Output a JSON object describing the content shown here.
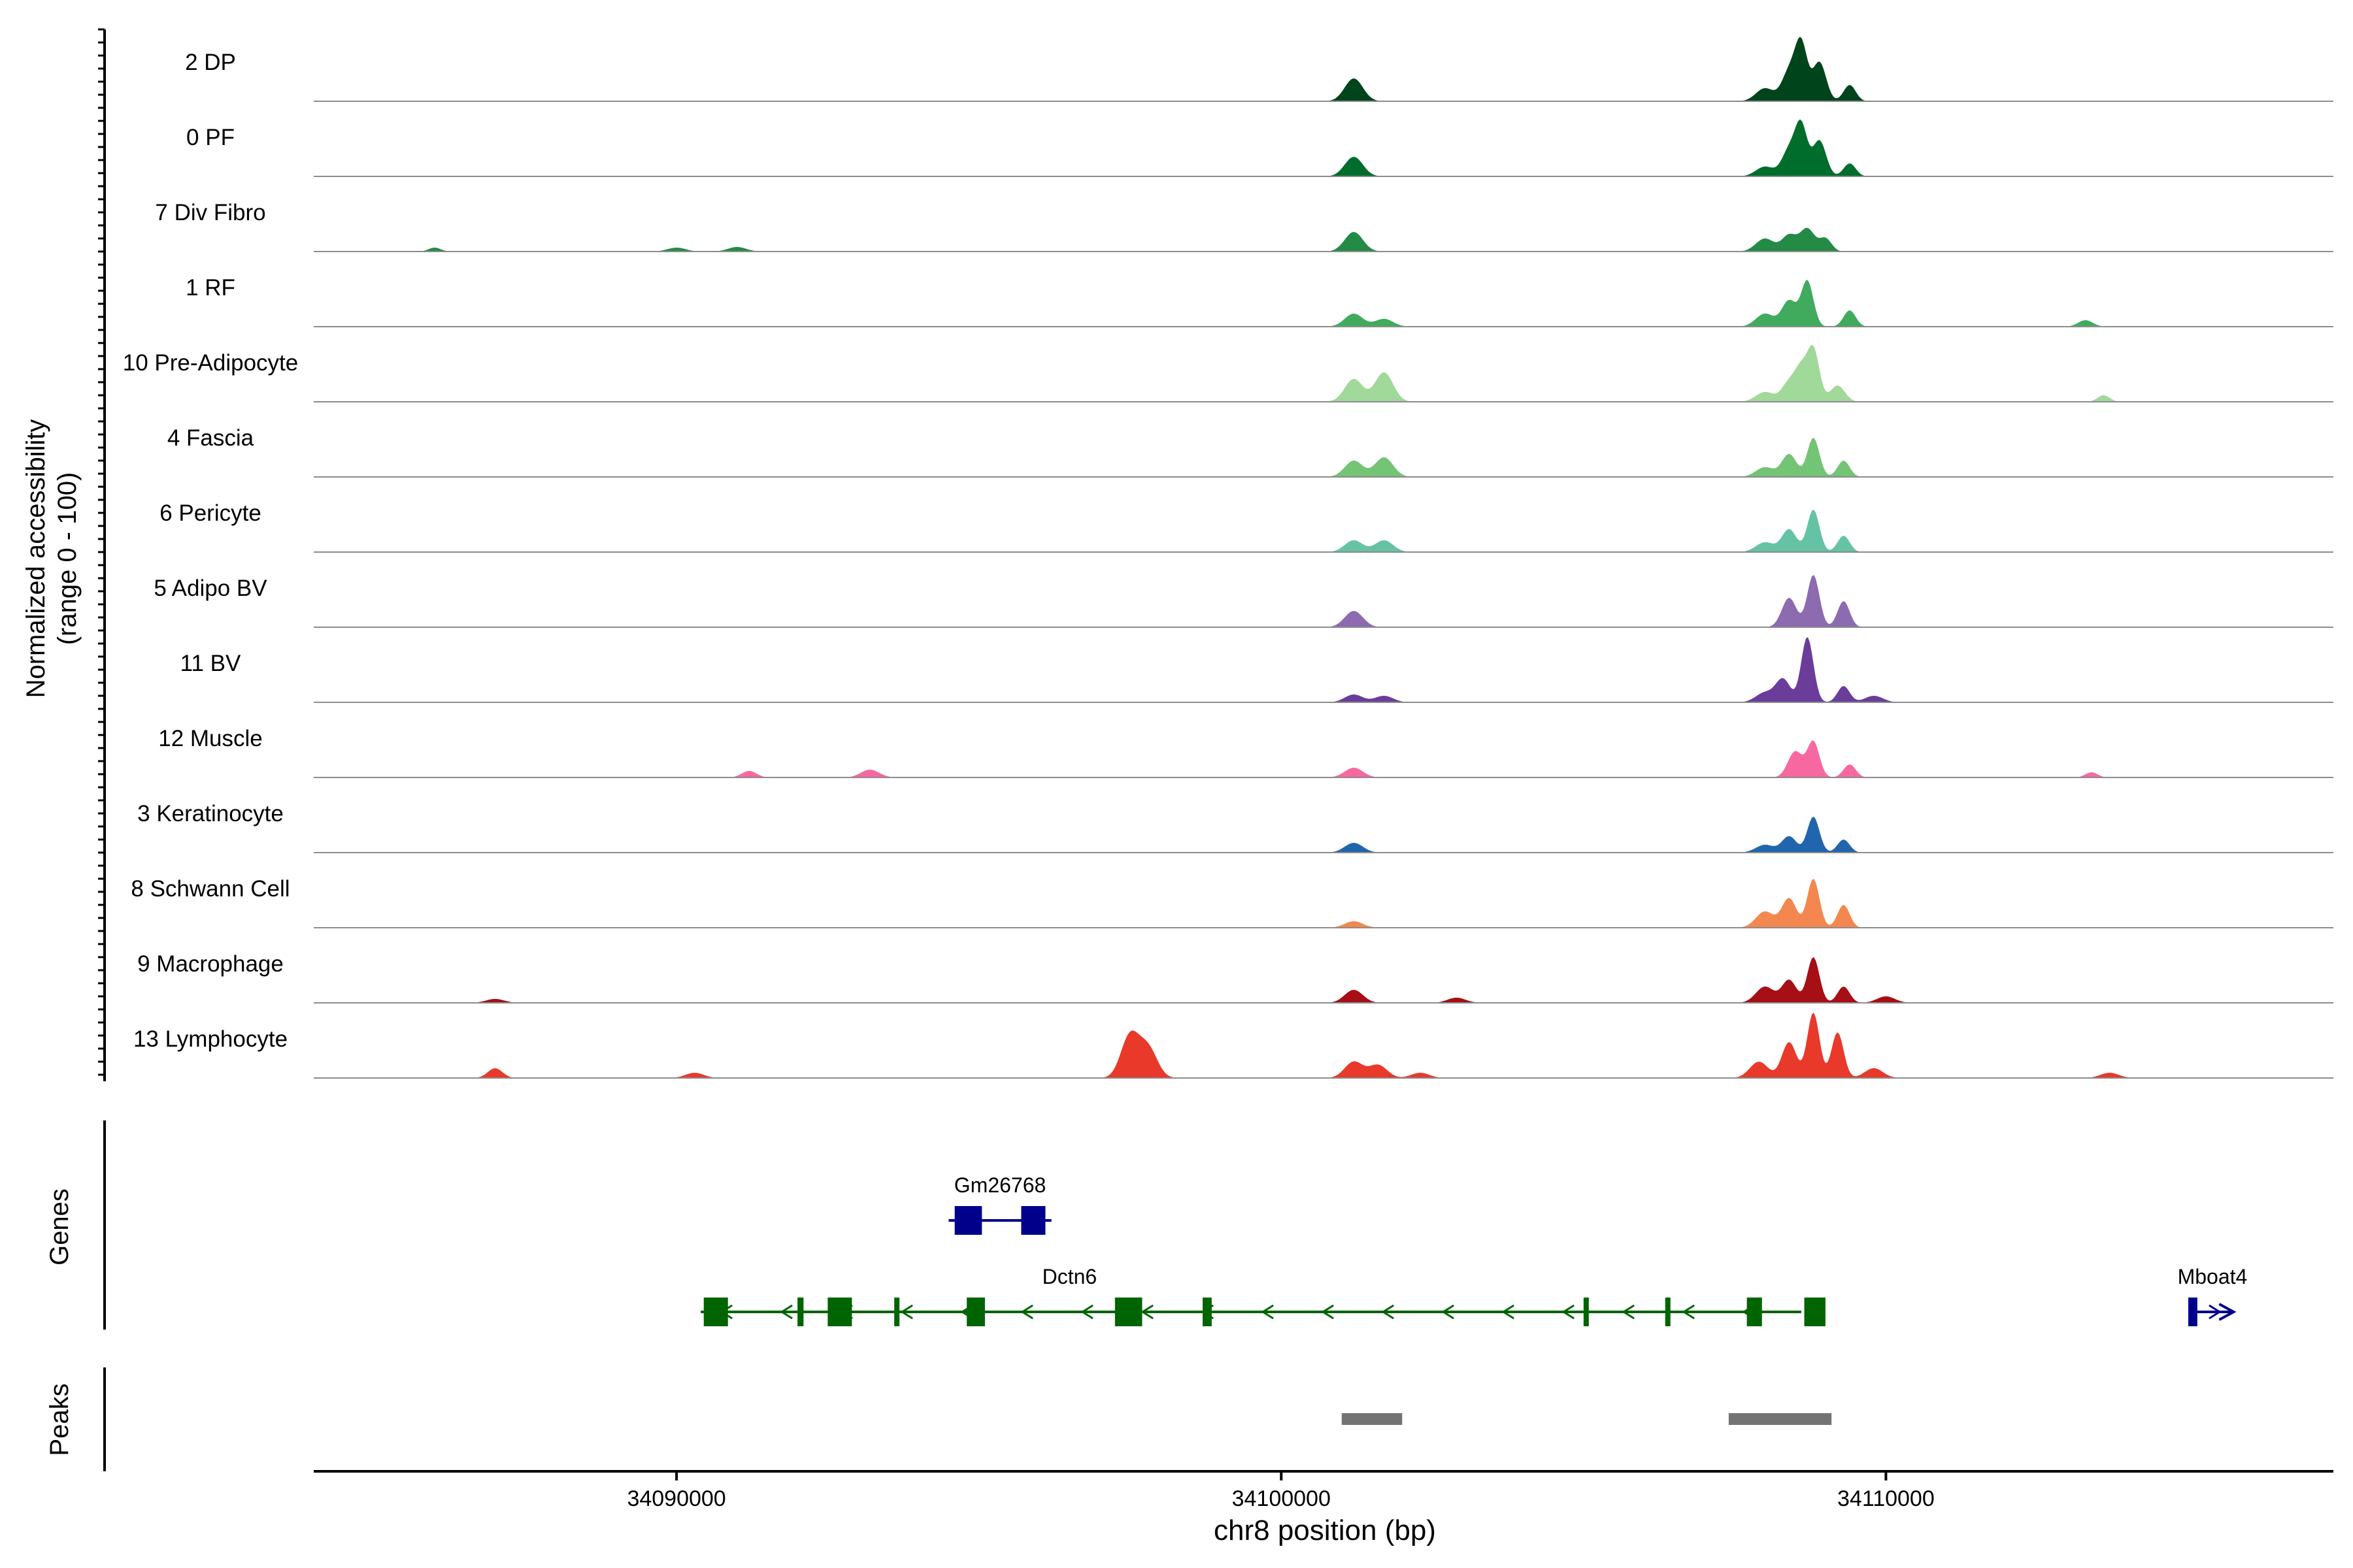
{
  "chart_data": {
    "type": "area",
    "title": "",
    "region": "chr8",
    "xlabel": "chr8 position (bp)",
    "ylabel": "Normalized accessibility",
    "ylabel_sub": "(range 0 - 100)",
    "xlim": [
      34084000,
      34117400
    ],
    "x_ticks": [
      34090000,
      34100000,
      34110000
    ],
    "x_tick_labels": [
      "34090000",
      "34100000",
      "34110000"
    ],
    "ylim": [
      0,
      100
    ],
    "series": [
      {
        "name": "2 DP",
        "color": "#00441b",
        "peaks": [
          [
            34101200,
            35,
            150
          ],
          [
            34108000,
            20,
            150
          ],
          [
            34108400,
            45,
            120
          ],
          [
            34108600,
            85,
            100
          ],
          [
            34108900,
            60,
            110
          ],
          [
            34109400,
            25,
            100
          ]
        ]
      },
      {
        "name": "0 PF",
        "color": "#006d2c",
        "peaks": [
          [
            34101200,
            30,
            150
          ],
          [
            34108000,
            15,
            150
          ],
          [
            34108400,
            40,
            120
          ],
          [
            34108600,
            75,
            100
          ],
          [
            34108900,
            55,
            110
          ],
          [
            34109400,
            20,
            100
          ]
        ]
      },
      {
        "name": "7 Div Fibro",
        "color": "#238b45",
        "peaks": [
          [
            34086000,
            6,
            100
          ],
          [
            34090000,
            6,
            150
          ],
          [
            34091000,
            7,
            150
          ],
          [
            34101200,
            30,
            150
          ],
          [
            34108000,
            20,
            150
          ],
          [
            34108400,
            25,
            120
          ],
          [
            34108700,
            35,
            120
          ],
          [
            34109000,
            20,
            100
          ]
        ]
      },
      {
        "name": "1 RF",
        "color": "#41ab5d",
        "peaks": [
          [
            34101200,
            20,
            150
          ],
          [
            34101700,
            12,
            150
          ],
          [
            34108000,
            20,
            150
          ],
          [
            34108400,
            40,
            120
          ],
          [
            34108700,
            70,
            100
          ],
          [
            34109400,
            25,
            100
          ],
          [
            34113300,
            10,
            120
          ]
        ]
      },
      {
        "name": "10 Pre-Adipocyte",
        "color": "#a1d99b",
        "peaks": [
          [
            34101200,
            35,
            150
          ],
          [
            34101700,
            45,
            150
          ],
          [
            34108000,
            15,
            150
          ],
          [
            34108400,
            30,
            120
          ],
          [
            34108600,
            45,
            100
          ],
          [
            34108800,
            80,
            100
          ],
          [
            34109200,
            25,
            120
          ],
          [
            34113600,
            10,
            100
          ]
        ]
      },
      {
        "name": "4 Fascia",
        "color": "#74c476",
        "peaks": [
          [
            34101200,
            25,
            150
          ],
          [
            34101700,
            30,
            150
          ],
          [
            34108000,
            15,
            150
          ],
          [
            34108400,
            35,
            120
          ],
          [
            34108800,
            60,
            100
          ],
          [
            34109300,
            25,
            100
          ]
        ]
      },
      {
        "name": "6 Pericyte",
        "color": "#66c2a4",
        "peaks": [
          [
            34101200,
            18,
            150
          ],
          [
            34101700,
            18,
            150
          ],
          [
            34108000,
            15,
            150
          ],
          [
            34108400,
            35,
            120
          ],
          [
            34108800,
            65,
            100
          ],
          [
            34109300,
            25,
            100
          ]
        ]
      },
      {
        "name": "5 Adipo BV",
        "color": "#8c6bb1",
        "peaks": [
          [
            34101200,
            25,
            150
          ],
          [
            34108400,
            45,
            120
          ],
          [
            34108800,
            80,
            100
          ],
          [
            34109300,
            40,
            100
          ]
        ]
      },
      {
        "name": "11 BV",
        "color": "#6a3d9a",
        "peaks": [
          [
            34101200,
            12,
            150
          ],
          [
            34101700,
            10,
            150
          ],
          [
            34108000,
            15,
            150
          ],
          [
            34108300,
            35,
            120
          ],
          [
            34108700,
            100,
            100
          ],
          [
            34109300,
            25,
            100
          ],
          [
            34109800,
            10,
            150
          ]
        ]
      },
      {
        "name": "12 Muscle",
        "color": "#f768a1",
        "peaks": [
          [
            34091200,
            10,
            120
          ],
          [
            34093200,
            12,
            150
          ],
          [
            34101200,
            15,
            150
          ],
          [
            34108500,
            40,
            120
          ],
          [
            34108800,
            55,
            100
          ],
          [
            34109400,
            20,
            100
          ],
          [
            34113400,
            8,
            100
          ]
        ]
      },
      {
        "name": "3 Keratinocyte",
        "color": "#2166ac",
        "peaks": [
          [
            34101200,
            15,
            150
          ],
          [
            34108000,
            12,
            150
          ],
          [
            34108400,
            25,
            120
          ],
          [
            34108800,
            55,
            100
          ],
          [
            34109300,
            20,
            100
          ]
        ]
      },
      {
        "name": "8 Schwann Cell",
        "color": "#f4874f",
        "peaks": [
          [
            34101200,
            10,
            150
          ],
          [
            34108000,
            25,
            150
          ],
          [
            34108400,
            45,
            120
          ],
          [
            34108800,
            75,
            100
          ],
          [
            34109300,
            35,
            100
          ]
        ]
      },
      {
        "name": "9 Macrophage",
        "color": "#a50f15",
        "peaks": [
          [
            34087000,
            6,
            150
          ],
          [
            34101200,
            20,
            150
          ],
          [
            34102900,
            8,
            150
          ],
          [
            34108000,
            25,
            150
          ],
          [
            34108400,
            35,
            120
          ],
          [
            34108800,
            70,
            100
          ],
          [
            34109300,
            25,
            100
          ],
          [
            34110000,
            10,
            150
          ]
        ]
      },
      {
        "name": "13 Lymphocyte",
        "color": "#e8392b",
        "peaks": [
          [
            34087000,
            15,
            120
          ],
          [
            34090300,
            8,
            150
          ],
          [
            34097500,
            65,
            150
          ],
          [
            34097800,
            45,
            150
          ],
          [
            34101200,
            25,
            150
          ],
          [
            34101600,
            20,
            150
          ],
          [
            34102300,
            8,
            150
          ],
          [
            34107900,
            25,
            150
          ],
          [
            34108400,
            55,
            120
          ],
          [
            34108800,
            100,
            100
          ],
          [
            34109200,
            70,
            100
          ],
          [
            34109800,
            15,
            150
          ],
          [
            34113700,
            8,
            150
          ]
        ]
      }
    ],
    "panel_labels": {
      "genes": "Genes",
      "peaks": "Peaks"
    },
    "genes": [
      {
        "name": "Gm26768",
        "strand": "+",
        "color": "#00008b",
        "start": 34094500,
        "end": 34096200,
        "exons": [
          [
            34094600,
            34095050
          ],
          [
            34095700,
            34096100
          ]
        ]
      },
      {
        "name": "Dctn6",
        "strand": "-",
        "color": "#006400",
        "start": 34090400,
        "end": 34108600,
        "exons": [
          [
            34090450,
            34090850
          ],
          [
            34092000,
            34092100
          ],
          [
            34092500,
            34092900
          ],
          [
            34093600,
            34093650
          ],
          [
            34094800,
            34095100
          ],
          [
            34097250,
            34097700
          ],
          [
            34098700,
            34098850
          ],
          [
            34105000,
            34105080
          ],
          [
            34106350,
            34106380
          ],
          [
            34107700,
            34107950
          ],
          [
            34108650,
            34109000
          ]
        ]
      },
      {
        "name": "Mboat4",
        "strand": "+",
        "color": "#00008b",
        "start": 34115000,
        "end": 34115750,
        "exons": [
          [
            34115000,
            34115150
          ]
        ]
      }
    ],
    "peaks_track": [
      [
        34101000,
        34102000
      ],
      [
        34107400,
        34109100
      ]
    ]
  }
}
